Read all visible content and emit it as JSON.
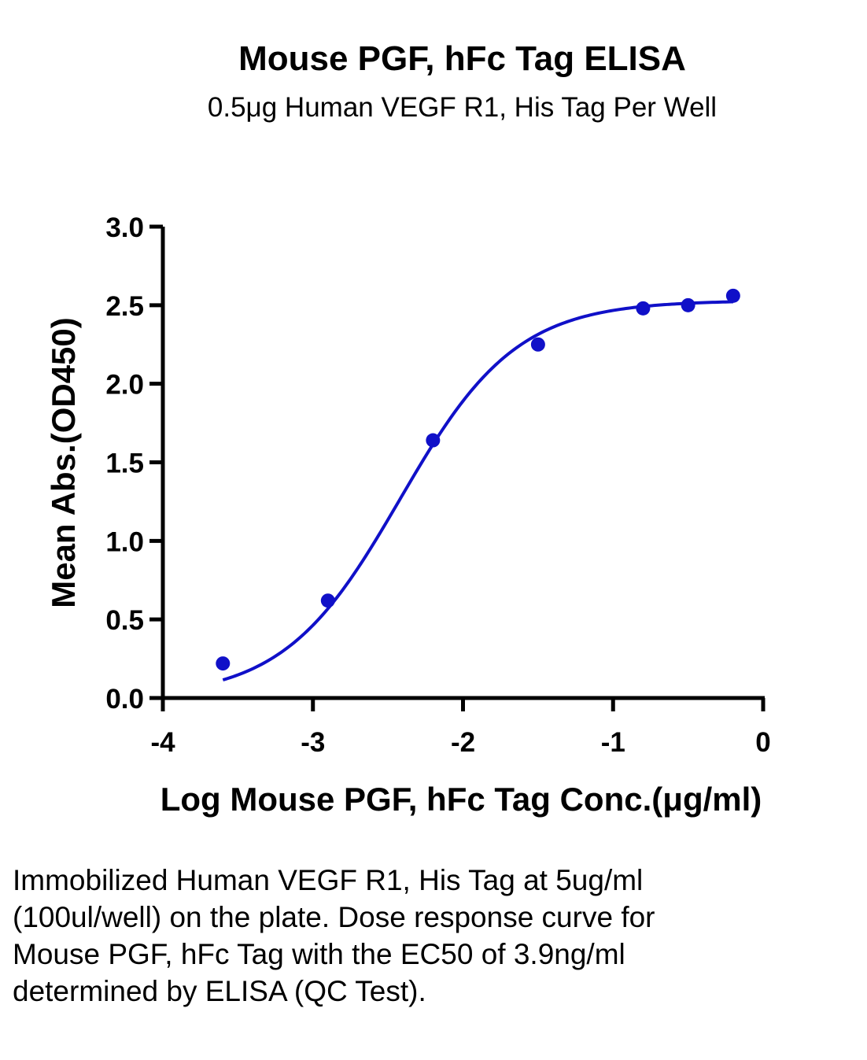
{
  "chart_data": {
    "type": "scatter",
    "title": "Mouse PGF, hFc Tag ELISA",
    "subtitle": "0.5μg Human VEGF R1, His Tag Per Well",
    "xlabel": "Log Mouse PGF, hFc Tag Conc.(μg/ml)",
    "ylabel": "Mean Abs.(OD450)",
    "xlim": [
      -4,
      0
    ],
    "ylim": [
      0,
      3.0
    ],
    "x_ticks": [
      "-4",
      "-3",
      "-2",
      "-1",
      "0"
    ],
    "y_ticks": [
      "0.0",
      "0.5",
      "1.0",
      "1.5",
      "2.0",
      "2.5",
      "3.0"
    ],
    "series": [
      {
        "color": "#1010c8",
        "x": [
          -3.6,
          -2.9,
          -2.2,
          -1.5,
          -0.8,
          -0.5,
          -0.2
        ],
        "y": [
          0.22,
          0.62,
          1.64,
          2.25,
          2.48,
          2.5,
          2.56
        ],
        "fit": "4-parameter logistic"
      }
    ],
    "grid": false
  },
  "caption": "Immobilized Human VEGF R1, His Tag at 5ug/ml (100ul/well) on the plate. Dose response curve for Mouse PGF, hFc Tag with the EC50 of 3.9ng/ml determined by ELISA (QC Test)."
}
